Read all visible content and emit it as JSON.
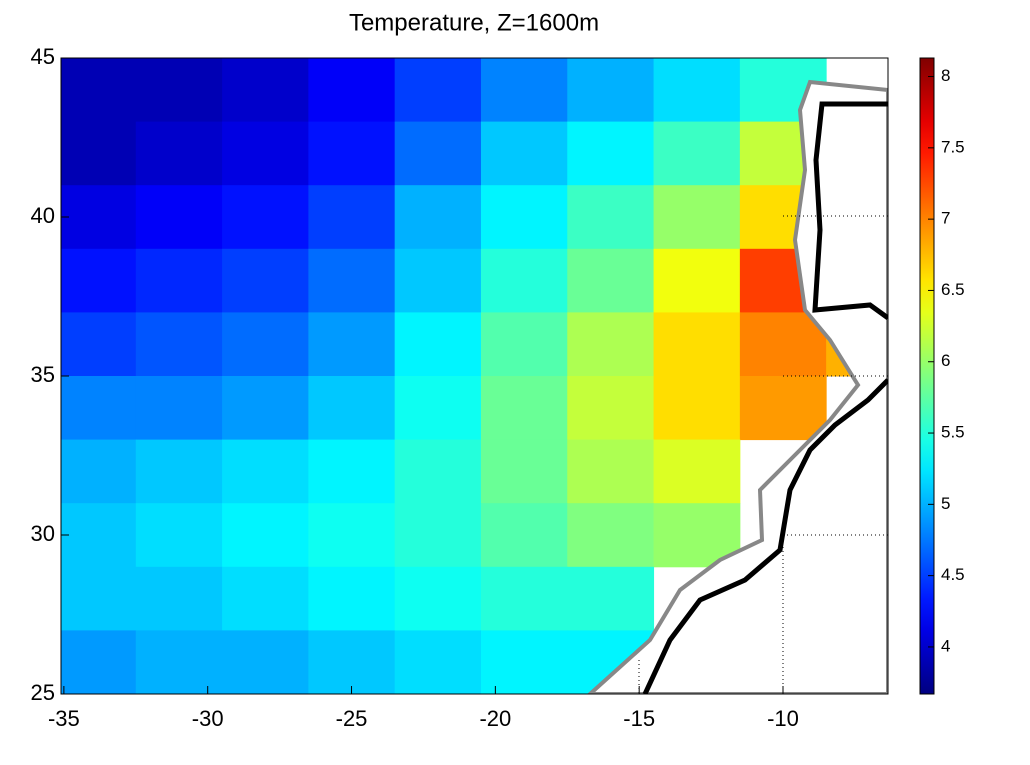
{
  "chart_data": {
    "type": "heatmap",
    "title": "Temperature, Z=1600m",
    "x": [
      -34,
      -31,
      -28,
      -25,
      -22,
      -19,
      -16,
      -13,
      -10,
      -7
    ],
    "y": [
      44,
      42,
      40,
      38,
      36,
      34,
      32,
      30,
      28,
      26
    ],
    "z": [
      [
        3.9,
        3.9,
        4.0,
        4.2,
        4.5,
        4.8,
        5.0,
        5.2,
        5.5,
        null
      ],
      [
        3.9,
        4.0,
        4.1,
        4.3,
        4.7,
        5.1,
        5.3,
        5.6,
        6.2,
        null
      ],
      [
        4.1,
        4.2,
        4.3,
        4.5,
        5.0,
        5.3,
        5.6,
        6.0,
        6.6,
        null
      ],
      [
        4.3,
        4.4,
        4.5,
        4.7,
        5.1,
        5.5,
        5.8,
        6.4,
        7.3,
        null
      ],
      [
        4.5,
        4.6,
        4.7,
        4.9,
        5.3,
        5.7,
        6.1,
        6.6,
        7.0,
        6.8
      ],
      [
        4.8,
        4.8,
        4.9,
        5.1,
        5.4,
        5.8,
        6.2,
        6.6,
        6.9,
        null
      ],
      [
        5.0,
        5.1,
        5.2,
        5.3,
        5.5,
        5.8,
        6.1,
        6.3,
        null,
        null
      ],
      [
        5.1,
        5.2,
        5.3,
        5.4,
        5.5,
        5.7,
        5.9,
        6.0,
        null,
        null
      ],
      [
        5.1,
        5.1,
        5.2,
        5.3,
        5.4,
        5.5,
        5.5,
        null,
        null,
        null
      ],
      [
        4.9,
        5.0,
        5.0,
        5.1,
        5.2,
        5.3,
        5.3,
        null,
        null,
        null
      ]
    ],
    "xlim": [
      -35.1,
      -6.35
    ],
    "xticks": [
      -35,
      -30,
      -25,
      -20,
      -15,
      -10
    ],
    "ylim": [
      25,
      45
    ],
    "yticks": [
      25,
      30,
      35,
      40,
      45
    ],
    "clim": [
      3.67,
      8.13
    ],
    "cticks": [
      4,
      4.5,
      5,
      5.5,
      6,
      6.5,
      7,
      7.5,
      8
    ],
    "colormap": "jet"
  }
}
